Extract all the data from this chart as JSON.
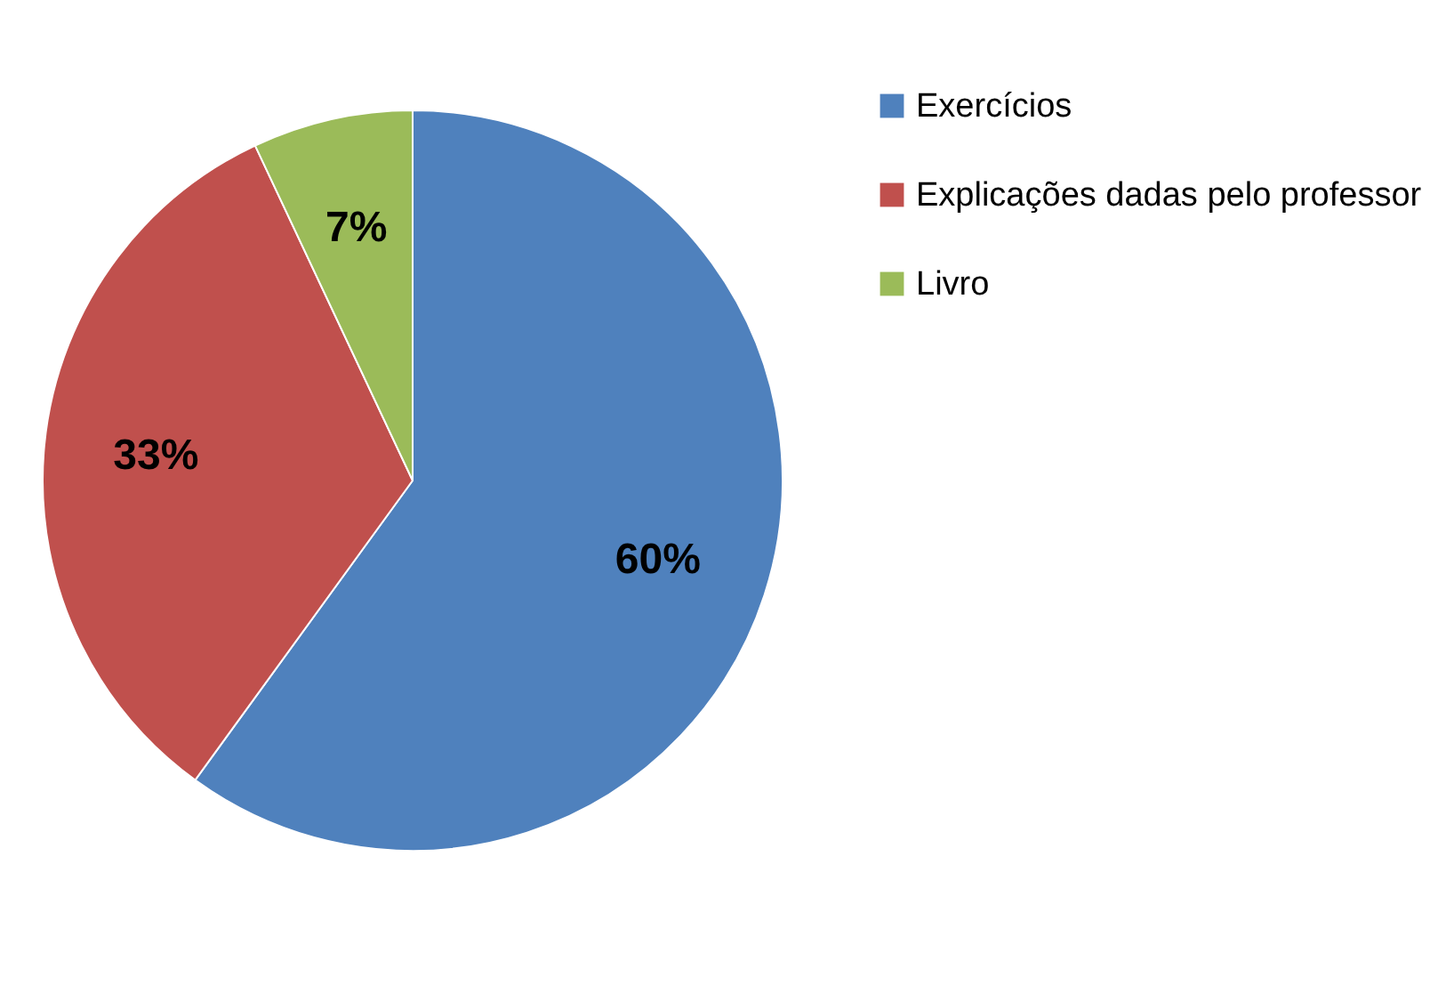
{
  "chart_data": {
    "type": "pie",
    "categories": [
      "Exercícios",
      "Explicações dadas pelo professor",
      "Livro"
    ],
    "values": [
      60,
      33,
      7
    ],
    "colors": [
      "#4f81bd",
      "#c0504d",
      "#9bbb59"
    ],
    "value_labels": [
      "60%",
      "33%",
      "7%"
    ],
    "legend": "right"
  }
}
